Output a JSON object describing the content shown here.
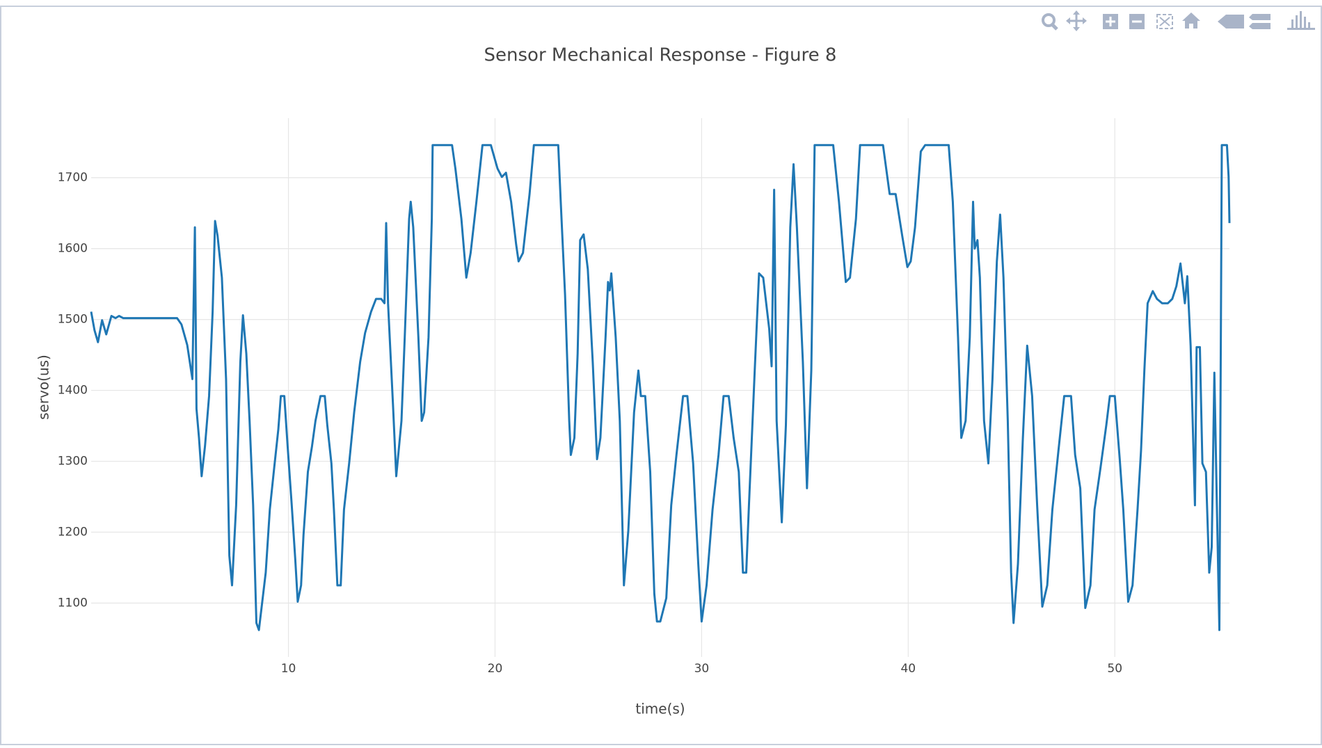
{
  "chart_data": {
    "type": "line",
    "title": "Sensor Mechanical Response - Figure 8",
    "x_label": "time(s)",
    "y_label": "servo(us)",
    "color": "#1f77b4",
    "grid": true,
    "x": [
      0.45,
      0.61,
      0.78,
      0.98,
      1.18,
      1.43,
      1.63,
      1.8,
      2.0,
      4.61,
      4.82,
      5.1,
      5.35,
      5.47,
      5.55,
      5.67,
      5.8,
      5.96,
      6.16,
      6.33,
      6.45,
      6.57,
      6.78,
      6.98,
      7.14,
      7.27,
      7.47,
      7.67,
      7.8,
      7.96,
      8.12,
      8.29,
      8.45,
      8.57,
      8.9,
      9.1,
      9.31,
      9.51,
      9.63,
      9.8,
      9.96,
      10.16,
      10.33,
      10.45,
      10.61,
      10.73,
      10.94,
      11.14,
      11.31,
      11.55,
      11.76,
      11.88,
      12.08,
      12.2,
      12.37,
      12.53,
      12.69,
      12.94,
      13.18,
      13.47,
      13.71,
      14.0,
      14.24,
      14.49,
      14.65,
      14.73,
      14.82,
      15.06,
      15.22,
      15.47,
      15.63,
      15.84,
      15.92,
      16.04,
      16.29,
      16.45,
      16.57,
      16.78,
      16.94,
      16.98,
      17.92,
      18.08,
      18.37,
      18.61,
      18.82,
      19.1,
      19.39,
      19.8,
      20.12,
      20.33,
      20.53,
      20.78,
      21.02,
      21.14,
      21.35,
      21.67,
      21.88,
      23.06,
      23.18,
      23.39,
      23.59,
      23.67,
      23.84,
      24.0,
      24.12,
      24.29,
      24.49,
      24.73,
      24.94,
      25.1,
      25.35,
      25.47,
      25.55,
      25.63,
      25.84,
      26.04,
      26.24,
      26.45,
      26.73,
      26.94,
      27.06,
      27.27,
      27.51,
      27.71,
      27.84,
      28.0,
      28.29,
      28.53,
      28.78,
      29.1,
      29.31,
      29.59,
      29.84,
      30.0,
      30.24,
      30.53,
      30.82,
      31.06,
      31.31,
      31.55,
      31.8,
      32.0,
      32.16,
      32.29,
      32.57,
      32.78,
      32.98,
      33.27,
      33.39,
      33.51,
      33.63,
      33.88,
      34.08,
      34.29,
      34.45,
      34.61,
      34.9,
      35.1,
      35.31,
      35.47,
      36.37,
      36.65,
      36.98,
      37.18,
      37.47,
      37.67,
      38.78,
      39.1,
      39.39,
      39.71,
      39.96,
      40.12,
      40.33,
      40.61,
      40.82,
      41.96,
      42.16,
      42.41,
      42.57,
      42.78,
      42.98,
      43.14,
      43.22,
      43.35,
      43.47,
      43.67,
      43.88,
      44.08,
      44.29,
      44.45,
      44.61,
      44.82,
      44.98,
      45.1,
      45.31,
      45.55,
      45.76,
      46.0,
      46.24,
      46.49,
      46.73,
      46.98,
      47.27,
      47.55,
      47.88,
      48.08,
      48.33,
      48.57,
      48.82,
      49.02,
      49.31,
      49.59,
      49.76,
      50.0,
      50.24,
      50.41,
      50.65,
      50.86,
      51.1,
      51.27,
      51.43,
      51.59,
      51.84,
      52.04,
      52.29,
      52.57,
      52.78,
      52.98,
      53.18,
      53.39,
      53.51,
      53.67,
      53.88,
      53.96,
      54.12,
      54.24,
      54.41,
      54.57,
      54.69,
      54.82,
      54.94,
      55.06,
      55.18,
      55.43,
      55.51,
      55.55
    ],
    "values": [
      1511,
      1485,
      1468,
      1499,
      1479,
      1505,
      1502,
      1505,
      1502,
      1502,
      1493,
      1464,
      1416,
      1630,
      1374,
      1333,
      1279,
      1321,
      1392,
      1511,
      1639,
      1618,
      1559,
      1416,
      1167,
      1125,
      1238,
      1440,
      1506,
      1452,
      1357,
      1238,
      1072,
      1062,
      1143,
      1232,
      1291,
      1345,
      1392,
      1392,
      1321,
      1238,
      1161,
      1102,
      1125,
      1196,
      1285,
      1321,
      1357,
      1392,
      1392,
      1351,
      1297,
      1232,
      1125,
      1125,
      1232,
      1297,
      1369,
      1440,
      1481,
      1511,
      1529,
      1529,
      1523,
      1636,
      1523,
      1380,
      1279,
      1357,
      1475,
      1642,
      1666,
      1630,
      1475,
      1357,
      1369,
      1475,
      1642,
      1746,
      1746,
      1713,
      1642,
      1559,
      1594,
      1666,
      1746,
      1746,
      1713,
      1701,
      1707,
      1666,
      1606,
      1582,
      1594,
      1677,
      1746,
      1746,
      1666,
      1535,
      1357,
      1309,
      1333,
      1452,
      1612,
      1620,
      1571,
      1440,
      1303,
      1333,
      1475,
      1553,
      1541,
      1565,
      1475,
      1357,
      1125,
      1202,
      1369,
      1428,
      1392,
      1392,
      1285,
      1113,
      1074,
      1074,
      1107,
      1238,
      1309,
      1392,
      1392,
      1297,
      1155,
      1074,
      1125,
      1232,
      1309,
      1392,
      1392,
      1333,
      1285,
      1143,
      1143,
      1238,
      1428,
      1565,
      1559,
      1487,
      1434,
      1683,
      1357,
      1214,
      1351,
      1630,
      1719,
      1630,
      1440,
      1262,
      1428,
      1746,
      1746,
      1666,
      1553,
      1559,
      1642,
      1746,
      1746,
      1677,
      1677,
      1618,
      1574,
      1582,
      1630,
      1737,
      1746,
      1746,
      1666,
      1475,
      1333,
      1357,
      1475,
      1666,
      1600,
      1612,
      1559,
      1357,
      1297,
      1416,
      1582,
      1648,
      1559,
      1357,
      1143,
      1072,
      1155,
      1333,
      1463,
      1392,
      1238,
      1095,
      1125,
      1232,
      1315,
      1392,
      1392,
      1309,
      1262,
      1093,
      1125,
      1232,
      1291,
      1351,
      1392,
      1392,
      1303,
      1232,
      1102,
      1125,
      1232,
      1315,
      1428,
      1523,
      1540,
      1529,
      1523,
      1523,
      1529,
      1547,
      1579,
      1523,
      1561,
      1463,
      1238,
      1461,
      1461,
      1297,
      1285,
      1143,
      1179,
      1425,
      1238,
      1062,
      1746,
      1746,
      1701,
      1636
    ],
    "xlim": [
      0.45,
      55.55
    ],
    "ylim": [
      1024,
      1784
    ],
    "xticks": [
      10,
      20,
      30,
      40,
      50
    ],
    "yticks": [
      1100,
      1200,
      1300,
      1400,
      1500,
      1600,
      1700
    ]
  }
}
